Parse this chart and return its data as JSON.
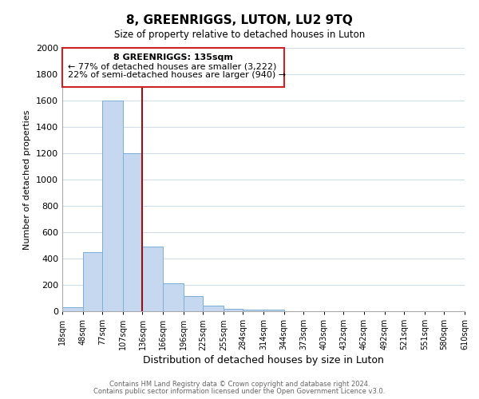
{
  "title": "8, GREENRIGGS, LUTON, LU2 9TQ",
  "subtitle": "Size of property relative to detached houses in Luton",
  "xlabel": "Distribution of detached houses by size in Luton",
  "ylabel": "Number of detached properties",
  "bar_color": "#c5d8f0",
  "bar_edge_color": "#7bafd4",
  "bin_edges": [
    18,
    48,
    77,
    107,
    136,
    166,
    196,
    225,
    255,
    284,
    314,
    344,
    373,
    403,
    432,
    462,
    492,
    521,
    551,
    580,
    610
  ],
  "bin_labels": [
    "18sqm",
    "48sqm",
    "77sqm",
    "107sqm",
    "136sqm",
    "166sqm",
    "196sqm",
    "225sqm",
    "255sqm",
    "284sqm",
    "314sqm",
    "344sqm",
    "373sqm",
    "403sqm",
    "432sqm",
    "462sqm",
    "492sqm",
    "521sqm",
    "551sqm",
    "580sqm",
    "610sqm"
  ],
  "counts": [
    30,
    450,
    1600,
    1200,
    490,
    210,
    115,
    40,
    20,
    15,
    10,
    0,
    0,
    0,
    0,
    0,
    0,
    0,
    0,
    0
  ],
  "property_line_x": 136,
  "property_line_color": "#991111",
  "ylim": [
    0,
    2000
  ],
  "yticks": [
    0,
    200,
    400,
    600,
    800,
    1000,
    1200,
    1400,
    1600,
    1800,
    2000
  ],
  "annotation_title": "8 GREENRIGGS: 135sqm",
  "annotation_line1": "← 77% of detached houses are smaller (3,222)",
  "annotation_line2": "22% of semi-detached houses are larger (940) →",
  "footer_line1": "Contains HM Land Registry data © Crown copyright and database right 2024.",
  "footer_line2": "Contains public sector information licensed under the Open Government Licence v3.0.",
  "background_color": "#ffffff",
  "grid_color": "#d0dce8"
}
